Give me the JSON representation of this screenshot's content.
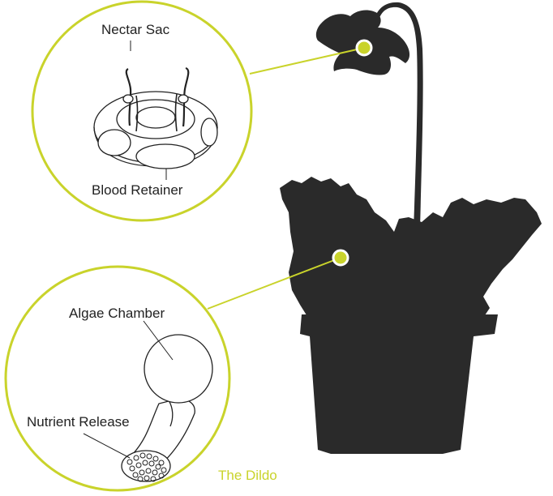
{
  "labels": {
    "nectar_sac": "Nectar Sac",
    "blood_retainer": "Blood Retainer",
    "algae_chamber": "Algae Chamber",
    "nutrient_release": "Nutrient Release",
    "the_dildo": "The Dildo"
  },
  "colors": {
    "accent": "#c9d32b",
    "silhouette": "#2a2a2a",
    "line_art": "#222222",
    "text": "#222222"
  }
}
